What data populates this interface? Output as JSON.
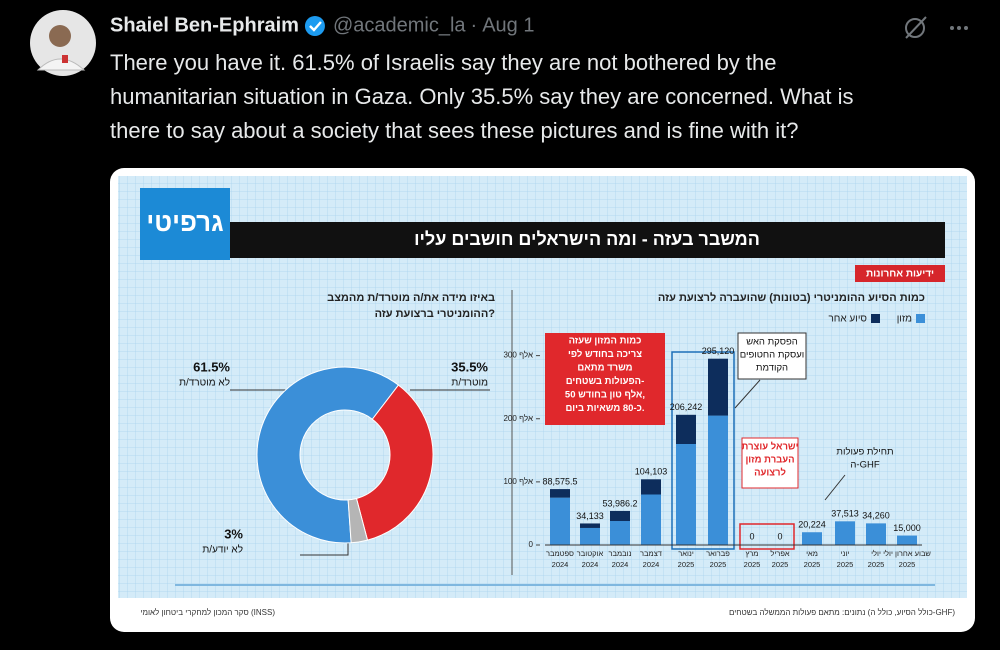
{
  "tweet": {
    "author": "Shaiel Ben-Ephraim",
    "handle": "@academic_la",
    "separator": "·",
    "date": "Aug 1",
    "text_lines": [
      "There you have it. 61.5% of Israelis say they are not bothered by the",
      "humanitarian situation in Gaza. Only 35.5% say they are concerned. What is",
      "there to say about a society that sees these pictures and is fine with it?"
    ]
  },
  "infographic": {
    "brand": "גרפיטי",
    "title": "המשבר בעזה - ומה הישראלים חושבים עליו",
    "source_logo": "ידיעות אחרונות",
    "donut": {
      "question_lines": [
        "באיזו מידה את/ה מוטרד/ת מהמצב",
        "ההומניטרי ברצועת עזה?"
      ],
      "labels": [
        "לא מוטרד/ת",
        "מוטרד/ת",
        "לא יודע/ת"
      ],
      "values": [
        61.5,
        35.5,
        3
      ],
      "value_labels": [
        "61.5%",
        "35.5%",
        "3%"
      ],
      "colors": [
        "#3b8fd8",
        "#e0282c",
        "#b5b5b5"
      ]
    },
    "bars": {
      "type": "bar",
      "title": "כמות הסיוע ההומניטרי (בטונות) שהועברה לרצועת עזה",
      "months": [
        "ספטמבר",
        "אוקטובר",
        "נובמבר",
        "דצמבר",
        "ינואר",
        "פברואר",
        "מרץ",
        "אפריל",
        "מאי",
        "יוני",
        "יולי",
        "שבוע אחרון יולי"
      ],
      "years": [
        "2024",
        "2024",
        "2024",
        "2024",
        "2025",
        "2025",
        "2025",
        "2025",
        "2025",
        "2025",
        "2025",
        "2025"
      ],
      "series": [
        {
          "name": "מזון",
          "color": "#3b8fd8",
          "values": [
            75000,
            27000,
            38000,
            80000,
            160000,
            205000,
            0,
            0,
            20224,
            37513,
            34260,
            15000
          ]
        },
        {
          "name": "סיוע אחר",
          "color": "#0d2d5c",
          "values": [
            13575.5,
            7133,
            15986.2,
            24103,
            46242,
            90120,
            0,
            0,
            0,
            0,
            0,
            0
          ]
        }
      ],
      "totals": [
        88575.5,
        34133,
        53986.2,
        104103,
        206242,
        295120,
        0,
        0,
        20224,
        37513,
        34260,
        15000
      ],
      "total_labels": [
        "88,575.5",
        "34,133",
        "53,986.2",
        "104,103",
        "206,242",
        "295,120",
        "0",
        "0",
        "20,224",
        "37,513",
        "34,260",
        "15,000"
      ],
      "ylim": [
        0,
        320000
      ],
      "yticks": [
        0,
        {
          "value": 100000,
          "label": "100 אלף"
        },
        {
          "value": 200000,
          "label": "200 אלף"
        },
        {
          "value": 300000,
          "label": "300 אלף"
        }
      ],
      "annotations": {
        "need": [
          "כמות המזון שעזה",
          "צריכה בחודש לפי",
          "משרד מתאם",
          "הפעולות בשטחים-",
          "50 אלף טון בחודש,",
          "כ-80 משאיות ביום."
        ],
        "ceasefire": [
          "הפסקת האש",
          "ועסקת החטופים",
          "הקודמת"
        ],
        "halt": [
          "ישראל עוצרת",
          "העברת מזון",
          "לרצועה"
        ],
        "ghf": [
          "תחילת פעולות",
          "ה-GHF"
        ]
      }
    },
    "footer_left": "סקר המכון למחקרי ביטחון לאומי (INSS)",
    "footer_right": "נתונים: מתאם פעולות הממשלה בשטחים (כולל הסיוע, כולל ה-GHF)"
  }
}
